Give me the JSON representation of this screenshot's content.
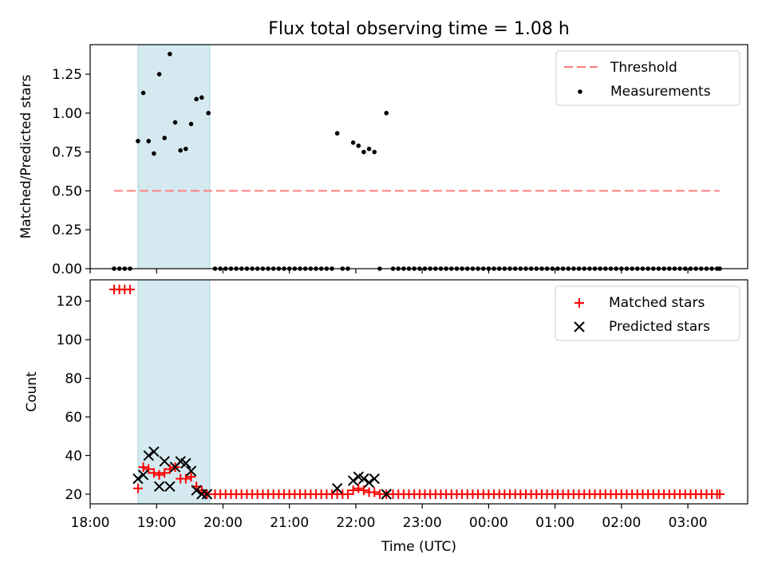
{
  "figure": {
    "title": "Flux total observing time = 1.08 h"
  },
  "chart_data": [
    {
      "type": "scatter",
      "panel": "top",
      "ylabel": "Matched/Predicted stars",
      "ylim": [
        0,
        1.44
      ],
      "yticks": [
        0,
        0.25,
        0.5,
        0.75,
        1.0,
        1.25
      ],
      "ytick_labels": [
        "0.00",
        "0.25",
        "0.50",
        "0.75",
        "1.00",
        "1.25"
      ],
      "xlim": [
        18.0,
        27.9
      ],
      "shaded_span": {
        "x": [
          18.72,
          19.8
        ],
        "color": "#d5eaf0"
      },
      "threshold": {
        "name": "Threshold",
        "y": 0.5,
        "x": [
          18.36,
          27.48
        ],
        "color": "#ff7f7f"
      },
      "measurements_name": "Measurements",
      "measurements": [
        {
          "x": 18.36,
          "y": 0.0
        },
        {
          "x": 18.44,
          "y": 0.0
        },
        {
          "x": 18.52,
          "y": 0.0
        },
        {
          "x": 18.6,
          "y": 0.0
        },
        {
          "x": 18.72,
          "y": 0.82
        },
        {
          "x": 18.8,
          "y": 1.13
        },
        {
          "x": 18.88,
          "y": 0.82
        },
        {
          "x": 18.96,
          "y": 0.74
        },
        {
          "x": 19.04,
          "y": 1.25
        },
        {
          "x": 19.12,
          "y": 0.84
        },
        {
          "x": 19.2,
          "y": 1.38
        },
        {
          "x": 19.28,
          "y": 0.94
        },
        {
          "x": 19.36,
          "y": 0.76
        },
        {
          "x": 19.44,
          "y": 0.77
        },
        {
          "x": 19.52,
          "y": 0.93
        },
        {
          "x": 19.6,
          "y": 1.09
        },
        {
          "x": 19.68,
          "y": 1.1
        },
        {
          "x": 19.78,
          "y": 1.0
        },
        {
          "x": 19.88,
          "y": 0.0
        },
        {
          "x": 19.96,
          "y": 0.0
        },
        {
          "x": 20.04,
          "y": 0.0
        },
        {
          "x": 20.12,
          "y": 0.0
        },
        {
          "x": 20.2,
          "y": 0.0
        },
        {
          "x": 20.28,
          "y": 0.0
        },
        {
          "x": 20.36,
          "y": 0.0
        },
        {
          "x": 20.44,
          "y": 0.0
        },
        {
          "x": 20.52,
          "y": 0.0
        },
        {
          "x": 20.6,
          "y": 0.0
        },
        {
          "x": 20.68,
          "y": 0.0
        },
        {
          "x": 20.76,
          "y": 0.0
        },
        {
          "x": 20.84,
          "y": 0.0
        },
        {
          "x": 20.92,
          "y": 0.0
        },
        {
          "x": 21.0,
          "y": 0.0
        },
        {
          "x": 21.08,
          "y": 0.0
        },
        {
          "x": 21.16,
          "y": 0.0
        },
        {
          "x": 21.24,
          "y": 0.0
        },
        {
          "x": 21.32,
          "y": 0.0
        },
        {
          "x": 21.4,
          "y": 0.0
        },
        {
          "x": 21.48,
          "y": 0.0
        },
        {
          "x": 21.56,
          "y": 0.0
        },
        {
          "x": 21.64,
          "y": 0.0
        },
        {
          "x": 21.72,
          "y": 0.87
        },
        {
          "x": 21.8,
          "y": 0.0
        },
        {
          "x": 21.88,
          "y": 0.0
        },
        {
          "x": 21.96,
          "y": 0.81
        },
        {
          "x": 22.04,
          "y": 0.79
        },
        {
          "x": 22.12,
          "y": 0.75
        },
        {
          "x": 22.2,
          "y": 0.77
        },
        {
          "x": 22.28,
          "y": 0.75
        },
        {
          "x": 22.36,
          "y": 0.0
        },
        {
          "x": 22.46,
          "y": 1.0
        },
        {
          "x": 22.56,
          "y": 0.0
        },
        {
          "x": 22.64,
          "y": 0.0
        },
        {
          "x": 22.72,
          "y": 0.0
        },
        {
          "x": 22.8,
          "y": 0.0
        },
        {
          "x": 22.88,
          "y": 0.0
        },
        {
          "x": 22.96,
          "y": 0.0
        },
        {
          "x": 23.04,
          "y": 0.0
        },
        {
          "x": 23.12,
          "y": 0.0
        },
        {
          "x": 23.2,
          "y": 0.0
        },
        {
          "x": 23.28,
          "y": 0.0
        },
        {
          "x": 23.36,
          "y": 0.0
        },
        {
          "x": 23.44,
          "y": 0.0
        },
        {
          "x": 23.52,
          "y": 0.0
        },
        {
          "x": 23.6,
          "y": 0.0
        },
        {
          "x": 23.68,
          "y": 0.0
        },
        {
          "x": 23.76,
          "y": 0.0
        },
        {
          "x": 23.84,
          "y": 0.0
        },
        {
          "x": 23.92,
          "y": 0.0
        },
        {
          "x": 24.0,
          "y": 0.0
        },
        {
          "x": 24.08,
          "y": 0.0
        },
        {
          "x": 24.16,
          "y": 0.0
        },
        {
          "x": 24.24,
          "y": 0.0
        },
        {
          "x": 24.32,
          "y": 0.0
        },
        {
          "x": 24.4,
          "y": 0.0
        },
        {
          "x": 24.48,
          "y": 0.0
        },
        {
          "x": 24.56,
          "y": 0.0
        },
        {
          "x": 24.64,
          "y": 0.0
        },
        {
          "x": 24.72,
          "y": 0.0
        },
        {
          "x": 24.8,
          "y": 0.0
        },
        {
          "x": 24.88,
          "y": 0.0
        },
        {
          "x": 24.96,
          "y": 0.0
        },
        {
          "x": 25.04,
          "y": 0.0
        },
        {
          "x": 25.12,
          "y": 0.0
        },
        {
          "x": 25.2,
          "y": 0.0
        },
        {
          "x": 25.28,
          "y": 0.0
        },
        {
          "x": 25.36,
          "y": 0.0
        },
        {
          "x": 25.44,
          "y": 0.0
        },
        {
          "x": 25.52,
          "y": 0.0
        },
        {
          "x": 25.6,
          "y": 0.0
        },
        {
          "x": 25.68,
          "y": 0.0
        },
        {
          "x": 25.76,
          "y": 0.0
        },
        {
          "x": 25.84,
          "y": 0.0
        },
        {
          "x": 25.92,
          "y": 0.0
        },
        {
          "x": 26.0,
          "y": 0.0
        },
        {
          "x": 26.08,
          "y": 0.0
        },
        {
          "x": 26.16,
          "y": 0.0
        },
        {
          "x": 26.24,
          "y": 0.0
        },
        {
          "x": 26.32,
          "y": 0.0
        },
        {
          "x": 26.4,
          "y": 0.0
        },
        {
          "x": 26.48,
          "y": 0.0
        },
        {
          "x": 26.56,
          "y": 0.0
        },
        {
          "x": 26.64,
          "y": 0.0
        },
        {
          "x": 26.72,
          "y": 0.0
        },
        {
          "x": 26.8,
          "y": 0.0
        },
        {
          "x": 26.88,
          "y": 0.0
        },
        {
          "x": 26.96,
          "y": 0.0
        },
        {
          "x": 27.04,
          "y": 0.0
        },
        {
          "x": 27.12,
          "y": 0.0
        },
        {
          "x": 27.2,
          "y": 0.0
        },
        {
          "x": 27.28,
          "y": 0.0
        },
        {
          "x": 27.36,
          "y": 0.0
        },
        {
          "x": 27.44,
          "y": 0.0
        },
        {
          "x": 27.48,
          "y": 0.0
        }
      ],
      "legend": {
        "placement": "top-right",
        "entries": [
          "Threshold",
          "Measurements"
        ]
      }
    },
    {
      "type": "scatter",
      "panel": "bottom",
      "xlabel": "Time (UTC)",
      "ylabel": "Count",
      "ylim": [
        15,
        131
      ],
      "yticks": [
        20,
        40,
        60,
        80,
        100,
        120
      ],
      "ytick_labels": [
        "20",
        "40",
        "60",
        "80",
        "100",
        "120"
      ],
      "xlim": [
        18.0,
        27.9
      ],
      "xticks": [
        18,
        19,
        20,
        21,
        22,
        23,
        24,
        25,
        26,
        27
      ],
      "xtick_labels": [
        "18:00",
        "19:00",
        "20:00",
        "21:00",
        "22:00",
        "23:00",
        "00:00",
        "01:00",
        "02:00",
        "03:00"
      ],
      "shaded_span": {
        "x": [
          18.72,
          19.8
        ],
        "color": "#d5eaf0"
      },
      "series": [
        {
          "name": "Matched stars",
          "marker": "plus",
          "color": "#ff0000",
          "points": [
            {
              "x": 18.36,
              "y": 126
            },
            {
              "x": 18.44,
              "y": 126
            },
            {
              "x": 18.52,
              "y": 126
            },
            {
              "x": 18.6,
              "y": 126
            },
            {
              "x": 18.72,
              "y": 23
            },
            {
              "x": 18.8,
              "y": 34
            },
            {
              "x": 18.88,
              "y": 33
            },
            {
              "x": 18.96,
              "y": 31
            },
            {
              "x": 19.04,
              "y": 30
            },
            {
              "x": 19.12,
              "y": 31
            },
            {
              "x": 19.2,
              "y": 33
            },
            {
              "x": 19.28,
              "y": 34
            },
            {
              "x": 19.36,
              "y": 28
            },
            {
              "x": 19.44,
              "y": 28
            },
            {
              "x": 19.52,
              "y": 29
            },
            {
              "x": 19.6,
              "y": 24
            },
            {
              "x": 19.68,
              "y": 22
            },
            {
              "x": 19.76,
              "y": 20
            },
            {
              "x": 19.88,
              "y": 20
            },
            {
              "x": 19.96,
              "y": 20
            },
            {
              "x": 20.04,
              "y": 20
            },
            {
              "x": 20.12,
              "y": 20
            },
            {
              "x": 20.2,
              "y": 20
            },
            {
              "x": 20.28,
              "y": 20
            },
            {
              "x": 20.36,
              "y": 20
            },
            {
              "x": 20.44,
              "y": 20
            },
            {
              "x": 20.52,
              "y": 20
            },
            {
              "x": 20.6,
              "y": 20
            },
            {
              "x": 20.68,
              "y": 20
            },
            {
              "x": 20.76,
              "y": 20
            },
            {
              "x": 20.84,
              "y": 20
            },
            {
              "x": 20.92,
              "y": 20
            },
            {
              "x": 21.0,
              "y": 20
            },
            {
              "x": 21.08,
              "y": 20
            },
            {
              "x": 21.16,
              "y": 20
            },
            {
              "x": 21.24,
              "y": 20
            },
            {
              "x": 21.32,
              "y": 20
            },
            {
              "x": 21.4,
              "y": 20
            },
            {
              "x": 21.48,
              "y": 20
            },
            {
              "x": 21.56,
              "y": 20
            },
            {
              "x": 21.64,
              "y": 20
            },
            {
              "x": 21.72,
              "y": 20
            },
            {
              "x": 21.8,
              "y": 20
            },
            {
              "x": 21.88,
              "y": 20
            },
            {
              "x": 21.96,
              "y": 22
            },
            {
              "x": 22.04,
              "y": 23
            },
            {
              "x": 22.12,
              "y": 22
            },
            {
              "x": 22.2,
              "y": 21
            },
            {
              "x": 22.28,
              "y": 21
            },
            {
              "x": 22.36,
              "y": 20
            },
            {
              "x": 22.46,
              "y": 20
            },
            {
              "x": 22.56,
              "y": 20
            },
            {
              "x": 22.64,
              "y": 20
            },
            {
              "x": 22.72,
              "y": 20
            },
            {
              "x": 22.8,
              "y": 20
            },
            {
              "x": 22.88,
              "y": 20
            },
            {
              "x": 22.96,
              "y": 20
            },
            {
              "x": 23.04,
              "y": 20
            },
            {
              "x": 23.12,
              "y": 20
            },
            {
              "x": 23.2,
              "y": 20
            },
            {
              "x": 23.28,
              "y": 20
            },
            {
              "x": 23.36,
              "y": 20
            },
            {
              "x": 23.44,
              "y": 20
            },
            {
              "x": 23.52,
              "y": 20
            },
            {
              "x": 23.6,
              "y": 20
            },
            {
              "x": 23.68,
              "y": 20
            },
            {
              "x": 23.76,
              "y": 20
            },
            {
              "x": 23.84,
              "y": 20
            },
            {
              "x": 23.92,
              "y": 20
            },
            {
              "x": 24.0,
              "y": 20
            },
            {
              "x": 24.08,
              "y": 20
            },
            {
              "x": 24.16,
              "y": 20
            },
            {
              "x": 24.24,
              "y": 20
            },
            {
              "x": 24.32,
              "y": 20
            },
            {
              "x": 24.4,
              "y": 20
            },
            {
              "x": 24.48,
              "y": 20
            },
            {
              "x": 24.56,
              "y": 20
            },
            {
              "x": 24.64,
              "y": 20
            },
            {
              "x": 24.72,
              "y": 20
            },
            {
              "x": 24.8,
              "y": 20
            },
            {
              "x": 24.88,
              "y": 20
            },
            {
              "x": 24.96,
              "y": 20
            },
            {
              "x": 25.04,
              "y": 20
            },
            {
              "x": 25.12,
              "y": 20
            },
            {
              "x": 25.2,
              "y": 20
            },
            {
              "x": 25.28,
              "y": 20
            },
            {
              "x": 25.36,
              "y": 20
            },
            {
              "x": 25.44,
              "y": 20
            },
            {
              "x": 25.52,
              "y": 20
            },
            {
              "x": 25.6,
              "y": 20
            },
            {
              "x": 25.68,
              "y": 20
            },
            {
              "x": 25.76,
              "y": 20
            },
            {
              "x": 25.84,
              "y": 20
            },
            {
              "x": 25.92,
              "y": 20
            },
            {
              "x": 26.0,
              "y": 20
            },
            {
              "x": 26.08,
              "y": 20
            },
            {
              "x": 26.16,
              "y": 20
            },
            {
              "x": 26.24,
              "y": 20
            },
            {
              "x": 26.32,
              "y": 20
            },
            {
              "x": 26.4,
              "y": 20
            },
            {
              "x": 26.48,
              "y": 20
            },
            {
              "x": 26.56,
              "y": 20
            },
            {
              "x": 26.64,
              "y": 20
            },
            {
              "x": 26.72,
              "y": 20
            },
            {
              "x": 26.8,
              "y": 20
            },
            {
              "x": 26.88,
              "y": 20
            },
            {
              "x": 26.96,
              "y": 20
            },
            {
              "x": 27.04,
              "y": 20
            },
            {
              "x": 27.12,
              "y": 20
            },
            {
              "x": 27.2,
              "y": 20
            },
            {
              "x": 27.28,
              "y": 20
            },
            {
              "x": 27.36,
              "y": 20
            },
            {
              "x": 27.44,
              "y": 20
            },
            {
              "x": 27.48,
              "y": 20
            }
          ]
        },
        {
          "name": "Predicted stars",
          "marker": "x",
          "color": "#000000",
          "points": [
            {
              "x": 18.72,
              "y": 28
            },
            {
              "x": 18.8,
              "y": 30
            },
            {
              "x": 18.88,
              "y": 40
            },
            {
              "x": 18.96,
              "y": 42
            },
            {
              "x": 19.04,
              "y": 24
            },
            {
              "x": 19.12,
              "y": 37
            },
            {
              "x": 19.2,
              "y": 24
            },
            {
              "x": 19.28,
              "y": 34
            },
            {
              "x": 19.36,
              "y": 37
            },
            {
              "x": 19.44,
              "y": 36
            },
            {
              "x": 19.52,
              "y": 32
            },
            {
              "x": 19.6,
              "y": 22
            },
            {
              "x": 19.68,
              "y": 20
            },
            {
              "x": 19.76,
              "y": 20
            },
            {
              "x": 21.72,
              "y": 23
            },
            {
              "x": 21.96,
              "y": 27
            },
            {
              "x": 22.04,
              "y": 29
            },
            {
              "x": 22.12,
              "y": 28
            },
            {
              "x": 22.2,
              "y": 26
            },
            {
              "x": 22.28,
              "y": 28
            },
            {
              "x": 22.46,
              "y": 20
            }
          ]
        }
      ],
      "legend": {
        "placement": "top-right",
        "entries": [
          "Matched stars",
          "Predicted stars"
        ]
      }
    }
  ]
}
